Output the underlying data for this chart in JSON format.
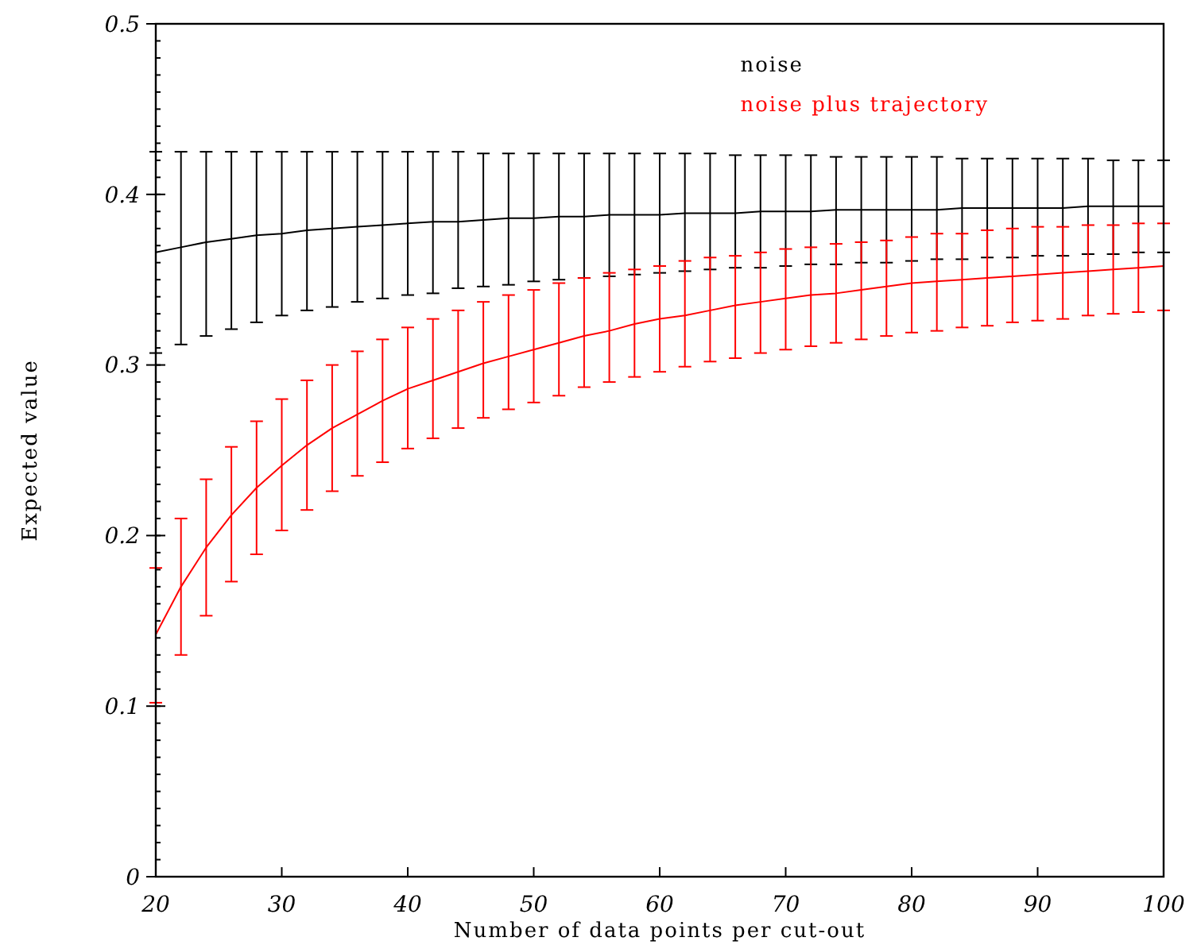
{
  "chart_data": {
    "type": "line",
    "xlabel": "Number of data points per cut-out",
    "ylabel": "Expected value",
    "x": [
      20,
      22,
      24,
      26,
      28,
      30,
      32,
      34,
      36,
      38,
      40,
      42,
      44,
      46,
      48,
      50,
      52,
      54,
      56,
      58,
      60,
      62,
      64,
      66,
      68,
      70,
      72,
      74,
      76,
      78,
      80,
      82,
      84,
      86,
      88,
      90,
      92,
      94,
      96,
      98,
      100
    ],
    "series": [
      {
        "name": "noise",
        "color": "#000000",
        "values": [
          0.366,
          0.369,
          0.372,
          0.374,
          0.376,
          0.377,
          0.379,
          0.38,
          0.381,
          0.382,
          0.383,
          0.384,
          0.384,
          0.385,
          0.386,
          0.386,
          0.387,
          0.387,
          0.388,
          0.388,
          0.388,
          0.389,
          0.389,
          0.389,
          0.39,
          0.39,
          0.39,
          0.391,
          0.391,
          0.391,
          0.391,
          0.391,
          0.392,
          0.392,
          0.392,
          0.392,
          0.392,
          0.393,
          0.393,
          0.393,
          0.393
        ],
        "errors": [
          [
            0.307,
            0.425
          ],
          [
            0.312,
            0.425
          ],
          [
            0.317,
            0.425
          ],
          [
            0.321,
            0.425
          ],
          [
            0.325,
            0.425
          ],
          [
            0.329,
            0.425
          ],
          [
            0.332,
            0.425
          ],
          [
            0.334,
            0.425
          ],
          [
            0.337,
            0.425
          ],
          [
            0.339,
            0.425
          ],
          [
            0.341,
            0.425
          ],
          [
            0.342,
            0.425
          ],
          [
            0.345,
            0.425
          ],
          [
            0.346,
            0.424
          ],
          [
            0.347,
            0.424
          ],
          [
            0.349,
            0.424
          ],
          [
            0.35,
            0.424
          ],
          [
            0.351,
            0.424
          ],
          [
            0.352,
            0.424
          ],
          [
            0.353,
            0.424
          ],
          [
            0.354,
            0.424
          ],
          [
            0.355,
            0.424
          ],
          [
            0.356,
            0.424
          ],
          [
            0.357,
            0.423
          ],
          [
            0.357,
            0.423
          ],
          [
            0.358,
            0.423
          ],
          [
            0.359,
            0.423
          ],
          [
            0.359,
            0.422
          ],
          [
            0.36,
            0.422
          ],
          [
            0.36,
            0.422
          ],
          [
            0.361,
            0.422
          ],
          [
            0.362,
            0.422
          ],
          [
            0.362,
            0.421
          ],
          [
            0.363,
            0.421
          ],
          [
            0.363,
            0.421
          ],
          [
            0.364,
            0.421
          ],
          [
            0.364,
            0.421
          ],
          [
            0.365,
            0.421
          ],
          [
            0.365,
            0.42
          ],
          [
            0.366,
            0.42
          ],
          [
            0.366,
            0.42
          ]
        ]
      },
      {
        "name": "noise plus trajectory",
        "color": "#ff0000",
        "values": [
          0.142,
          0.17,
          0.193,
          0.212,
          0.228,
          0.241,
          0.253,
          0.263,
          0.271,
          0.279,
          0.286,
          0.291,
          0.296,
          0.301,
          0.305,
          0.309,
          0.313,
          0.317,
          0.32,
          0.324,
          0.327,
          0.329,
          0.332,
          0.335,
          0.337,
          0.339,
          0.341,
          0.342,
          0.344,
          0.346,
          0.348,
          0.349,
          0.35,
          0.351,
          0.352,
          0.353,
          0.354,
          0.355,
          0.356,
          0.357,
          0.358
        ],
        "errors": [
          [
            0.102,
            0.181
          ],
          [
            0.13,
            0.21
          ],
          [
            0.153,
            0.233
          ],
          [
            0.173,
            0.252
          ],
          [
            0.189,
            0.267
          ],
          [
            0.203,
            0.28
          ],
          [
            0.215,
            0.291
          ],
          [
            0.226,
            0.3
          ],
          [
            0.235,
            0.308
          ],
          [
            0.243,
            0.315
          ],
          [
            0.251,
            0.322
          ],
          [
            0.257,
            0.327
          ],
          [
            0.263,
            0.332
          ],
          [
            0.269,
            0.337
          ],
          [
            0.274,
            0.341
          ],
          [
            0.278,
            0.344
          ],
          [
            0.282,
            0.348
          ],
          [
            0.287,
            0.351
          ],
          [
            0.29,
            0.354
          ],
          [
            0.293,
            0.356
          ],
          [
            0.296,
            0.358
          ],
          [
            0.299,
            0.361
          ],
          [
            0.302,
            0.363
          ],
          [
            0.304,
            0.364
          ],
          [
            0.307,
            0.366
          ],
          [
            0.309,
            0.368
          ],
          [
            0.311,
            0.369
          ],
          [
            0.313,
            0.371
          ],
          [
            0.315,
            0.372
          ],
          [
            0.317,
            0.373
          ],
          [
            0.319,
            0.375
          ],
          [
            0.32,
            0.377
          ],
          [
            0.322,
            0.377
          ],
          [
            0.323,
            0.379
          ],
          [
            0.325,
            0.38
          ],
          [
            0.326,
            0.381
          ],
          [
            0.327,
            0.381
          ],
          [
            0.329,
            0.382
          ],
          [
            0.33,
            0.382
          ],
          [
            0.331,
            0.383
          ],
          [
            0.332,
            0.383
          ]
        ]
      }
    ],
    "xlim": [
      20,
      100
    ],
    "xticks": [
      20,
      30,
      40,
      50,
      60,
      70,
      80,
      90,
      100
    ],
    "ylim": [
      0,
      0.5
    ],
    "yticks": [
      0,
      0.1,
      0.2,
      0.3,
      0.4,
      0.5
    ],
    "grid": false,
    "legend": "top right",
    "marker": "none",
    "line_style": "solid"
  }
}
